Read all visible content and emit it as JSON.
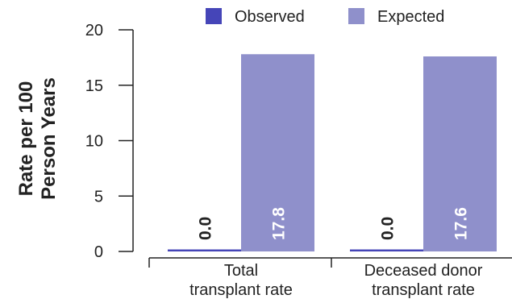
{
  "chart_data": {
    "type": "bar",
    "ylabel_lines": [
      "Rate per 100",
      "Person Years"
    ],
    "categories": [
      {
        "lines": [
          "Total",
          "transplant rate"
        ]
      },
      {
        "lines": [
          "Deceased donor",
          "transplant rate"
        ]
      }
    ],
    "series": [
      {
        "name": "Observed",
        "color": "#4545b8",
        "values": [
          0.0,
          0.0
        ],
        "labels": [
          "0.0",
          "0.0"
        ],
        "label_color": "#222222"
      },
      {
        "name": "Expected",
        "color": "#8f90cb",
        "values": [
          17.8,
          17.6
        ],
        "labels": [
          "17.8",
          "17.6"
        ],
        "label_color": "#ffffff"
      }
    ],
    "ylim": [
      0,
      20
    ],
    "yticks": [
      0,
      5,
      10,
      15,
      20
    ],
    "ytick_labels": [
      "0",
      "5",
      "10",
      "15",
      "20"
    ],
    "grid": false,
    "legend_position": "top"
  }
}
